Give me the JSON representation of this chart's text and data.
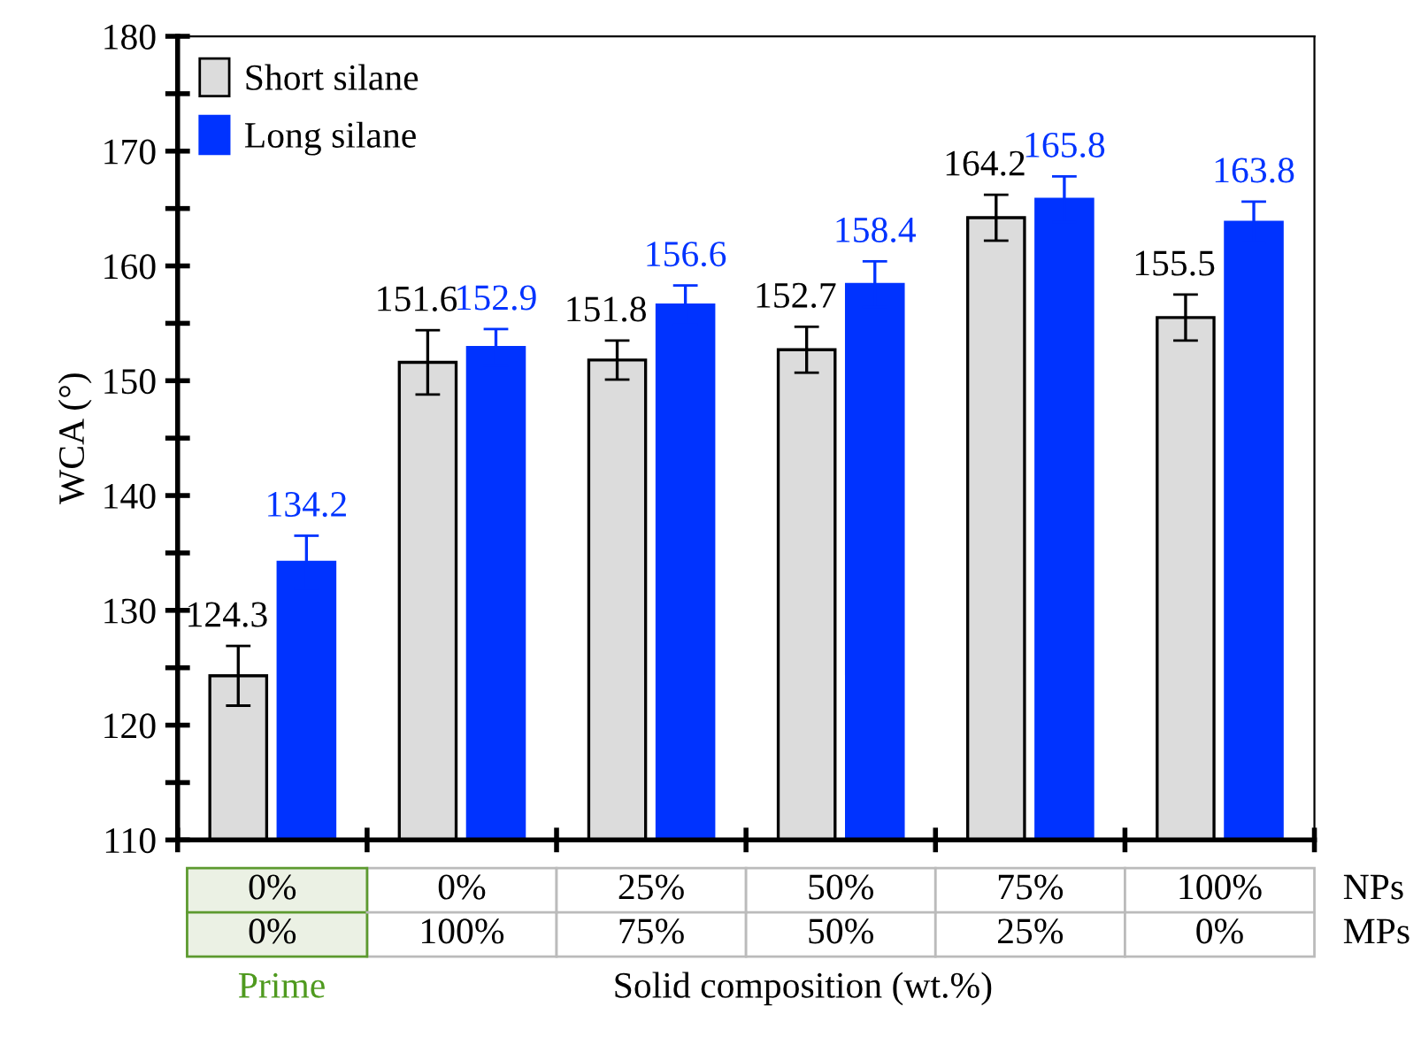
{
  "chart_data": {
    "type": "bar",
    "ylabel": "WCA (°)",
    "xlabel": "Solid composition (wt.%)",
    "categories": [
      "0%\n0%",
      "0%\n100%",
      "25%\n75%",
      "50%\n50%",
      "75%\n25%",
      "100%\n0%"
    ],
    "series": [
      {
        "name": "Short silane",
        "color": "#dcdcdc",
        "values": [
          124.3,
          151.6,
          151.8,
          152.7,
          164.2,
          155.5
        ],
        "errors": [
          2.6,
          2.8,
          1.7,
          2.0,
          2.0,
          2.0
        ]
      },
      {
        "name": "Long silane",
        "color": "#0033ff",
        "values": [
          134.2,
          152.9,
          156.6,
          158.4,
          165.8,
          163.8
        ],
        "errors": [
          2.3,
          1.6,
          1.7,
          2.0,
          2.0,
          1.8
        ]
      }
    ],
    "ylim": [
      110,
      180
    ],
    "yticks": [
      110,
      120,
      130,
      140,
      150,
      160,
      170,
      180
    ],
    "data_labels": true,
    "legend": "top left",
    "grid": false,
    "annotations": [
      "NPs",
      "MPs",
      "Prime"
    ]
  }
}
